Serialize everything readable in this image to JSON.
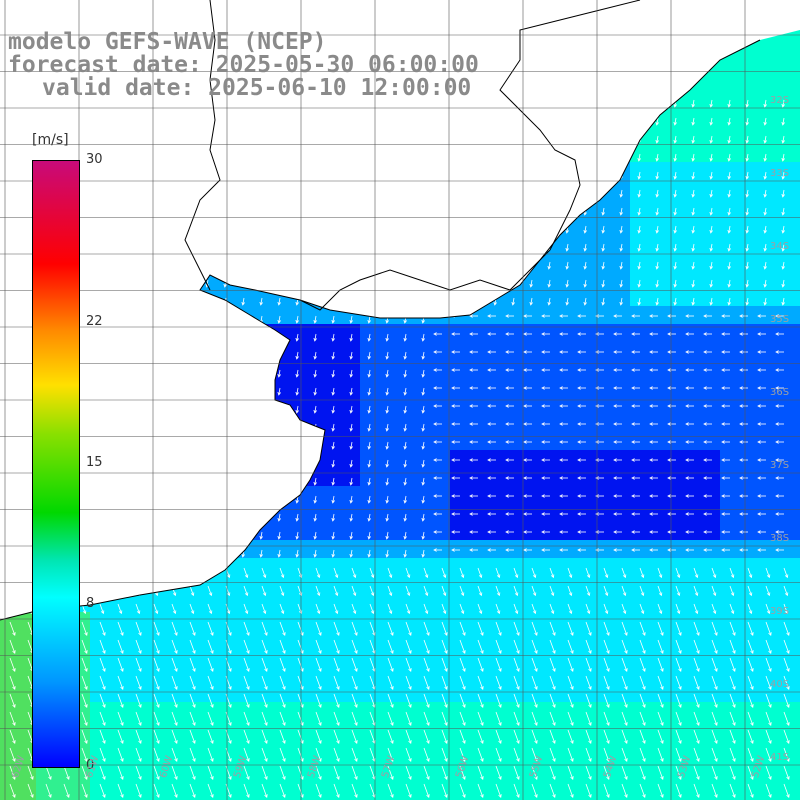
{
  "title": {
    "line1": "modelo GEFS-WAVE (NCEP)",
    "line2": "forecast date: 2025-05-30 06:00:00",
    "line3": "valid date: 2025-06-10 12:00:00"
  },
  "colorbar": {
    "unit": "[m/s]",
    "ticks": [
      "30",
      "22",
      "15",
      "8",
      "0"
    ],
    "tick_values": [
      30,
      22,
      15,
      8,
      0
    ],
    "range": [
      0,
      30
    ]
  },
  "axes": {
    "lat_labels": [
      "32S",
      "33S",
      "34S",
      "35S",
      "36S",
      "37S",
      "38S",
      "39S",
      "40S",
      "41S"
    ],
    "lon_labels": [
      "62W",
      "61W",
      "60W",
      "59W",
      "58W",
      "57W",
      "56W",
      "55W",
      "54W",
      "53W",
      "52W",
      "51W"
    ]
  },
  "map_data": {
    "variable": "wind speed",
    "region": "Rio de la Plata / South Atlantic",
    "colors": {
      "very_low": "#0014f0",
      "low": "#0055ff",
      "mid_low": "#00aaff",
      "mid": "#00e8ff",
      "high": "#00ffd0",
      "higher": "#30f090",
      "highest": "#50e060",
      "land": "#ffffff",
      "grid": "#555555",
      "arrow": "#ffffff",
      "coast": "#000000"
    }
  }
}
